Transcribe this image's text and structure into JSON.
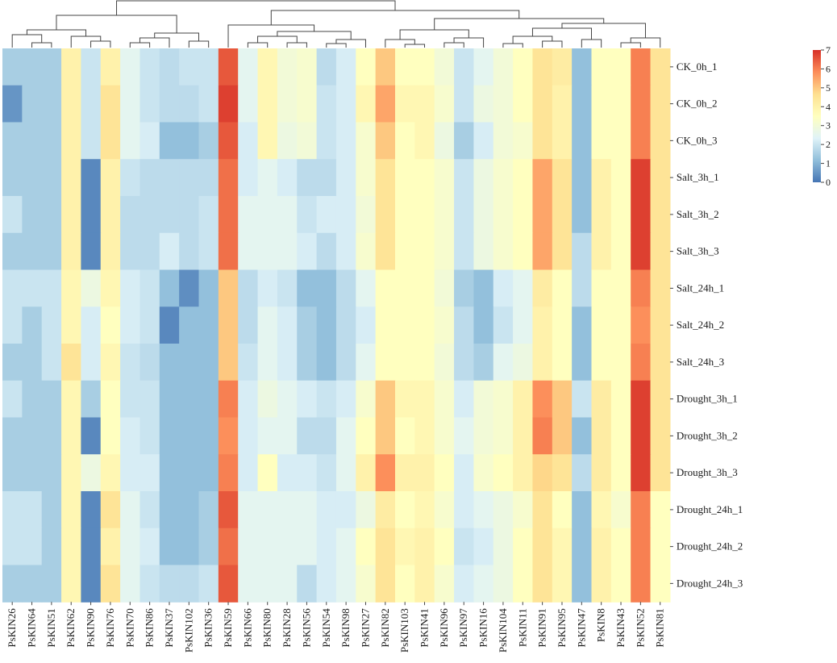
{
  "chart_data": {
    "type": "heatmap",
    "title": "",
    "columns": [
      "PsKIN26",
      "PsKIN64",
      "PsKIN51",
      "PsKIN62",
      "PsKIN90",
      "PsKIN76",
      "PsKIN70",
      "PsKIN86",
      "PsKIN37",
      "PsKIN102",
      "PsKIN36",
      "PsKIN59",
      "PsKIN66",
      "PsKIN80",
      "PsKIN28",
      "PsKIN56",
      "PsKIN54",
      "PsKIN98",
      "PsKIN27",
      "PsKIN82",
      "PsKIN103",
      "PsKIN41",
      "PsKIN96",
      "PsKIN97",
      "PsKIN16",
      "PsKIN104",
      "PsKIN11",
      "PsKIN91",
      "PsKIN95",
      "PsKIN47",
      "PsKIN8",
      "PsKIN43",
      "PsKIN52",
      "PsKIN81"
    ],
    "rows": [
      "CK_0h_1",
      "CK_0h_2",
      "CK_0h_3",
      "Salt_3h_1",
      "Salt_3h_2",
      "Salt_3h_3",
      "Salt_24h_1",
      "Salt_24h_2",
      "Salt_24h_3",
      "Drought_3h_1",
      "Drought_3h_2",
      "Drought_3h_3",
      "Drought_24h_1",
      "Drought_24h_2",
      "Drought_24h_3"
    ],
    "values": [
      [
        1.5,
        1.5,
        1.5,
        4.0,
        2.0,
        4.0,
        2.5,
        2.0,
        1.8,
        2.0,
        2.0,
        6.5,
        2.5,
        3.8,
        3.0,
        3.2,
        1.8,
        2.2,
        3.5,
        5.0,
        3.5,
        3.5,
        3.0,
        2.0,
        2.5,
        3.0,
        3.5,
        4.5,
        4.2,
        1.2,
        3.5,
        3.5,
        6.0,
        4.5
      ],
      [
        0.5,
        1.5,
        1.5,
        4.0,
        2.0,
        4.5,
        2.5,
        2.0,
        1.8,
        1.8,
        2.0,
        6.8,
        2.5,
        3.8,
        3.0,
        3.2,
        2.0,
        2.2,
        3.8,
        5.5,
        3.8,
        3.8,
        3.2,
        2.0,
        2.8,
        3.0,
        3.5,
        4.5,
        4.0,
        1.2,
        3.5,
        3.5,
        6.0,
        4.5
      ],
      [
        1.5,
        1.5,
        1.5,
        4.0,
        2.0,
        4.5,
        2.5,
        2.2,
        1.2,
        1.2,
        1.5,
        6.5,
        2.2,
        3.8,
        2.8,
        3.0,
        2.0,
        2.2,
        3.2,
        5.0,
        3.5,
        3.8,
        2.8,
        1.5,
        2.2,
        3.0,
        3.2,
        4.5,
        4.0,
        1.2,
        3.5,
        3.5,
        6.0,
        4.5
      ],
      [
        1.5,
        1.5,
        1.5,
        4.0,
        0.3,
        4.0,
        2.0,
        1.8,
        1.8,
        1.8,
        1.8,
        6.2,
        2.2,
        2.5,
        2.2,
        1.8,
        1.8,
        2.2,
        3.2,
        4.5,
        3.5,
        3.5,
        3.2,
        2.0,
        2.8,
        3.2,
        3.5,
        5.5,
        4.5,
        1.2,
        4.0,
        3.5,
        6.8,
        4.5
      ],
      [
        2.0,
        1.5,
        1.5,
        4.0,
        0.3,
        4.0,
        1.8,
        1.8,
        1.8,
        1.8,
        2.0,
        6.2,
        2.5,
        2.5,
        2.5,
        2.0,
        2.2,
        2.2,
        3.0,
        4.5,
        3.5,
        3.5,
        3.2,
        2.0,
        2.8,
        3.2,
        3.5,
        5.5,
        4.5,
        1.2,
        4.0,
        3.5,
        6.8,
        4.5
      ],
      [
        1.5,
        1.5,
        1.5,
        4.0,
        0.3,
        4.0,
        1.8,
        1.8,
        2.2,
        1.8,
        2.0,
        6.2,
        2.5,
        2.5,
        2.5,
        2.2,
        1.8,
        2.2,
        3.2,
        4.5,
        3.5,
        3.5,
        3.2,
        2.0,
        2.8,
        3.2,
        3.5,
        5.5,
        4.5,
        1.8,
        4.0,
        3.5,
        6.8,
        4.5
      ],
      [
        2.0,
        2.0,
        2.0,
        3.8,
        2.8,
        3.8,
        2.2,
        2.0,
        1.2,
        0.4,
        1.2,
        5.0,
        1.8,
        2.2,
        2.0,
        1.2,
        1.2,
        1.8,
        2.5,
        3.5,
        3.5,
        3.5,
        3.0,
        1.5,
        1.2,
        2.2,
        2.5,
        4.2,
        3.5,
        1.8,
        3.5,
        3.5,
        6.0,
        4.5
      ],
      [
        2.0,
        1.5,
        2.0,
        3.8,
        2.2,
        3.5,
        2.2,
        2.0,
        0.3,
        1.2,
        1.2,
        5.0,
        1.8,
        2.5,
        2.2,
        1.5,
        1.2,
        1.8,
        2.2,
        3.5,
        3.5,
        3.5,
        3.2,
        1.8,
        1.2,
        2.0,
        2.5,
        4.0,
        3.5,
        1.2,
        3.5,
        3.5,
        5.8,
        4.5
      ],
      [
        1.5,
        1.5,
        2.0,
        4.5,
        2.2,
        3.8,
        2.0,
        1.8,
        1.2,
        1.2,
        1.2,
        5.0,
        2.0,
        2.5,
        2.2,
        1.5,
        1.2,
        1.8,
        2.5,
        3.5,
        3.5,
        3.5,
        3.0,
        1.8,
        1.5,
        2.5,
        2.8,
        4.0,
        3.5,
        1.2,
        3.5,
        3.5,
        6.0,
        4.5
      ],
      [
        2.0,
        1.5,
        1.5,
        3.8,
        1.5,
        3.5,
        2.0,
        2.0,
        1.2,
        1.2,
        1.2,
        6.0,
        2.2,
        2.8,
        2.5,
        2.2,
        2.0,
        2.2,
        3.2,
        5.0,
        3.8,
        3.8,
        3.2,
        2.2,
        3.0,
        3.2,
        4.0,
        5.8,
        5.0,
        2.0,
        4.2,
        3.5,
        6.8,
        4.5
      ],
      [
        1.5,
        1.5,
        1.5,
        3.8,
        0.3,
        3.5,
        2.2,
        2.0,
        1.2,
        1.2,
        1.2,
        5.8,
        2.2,
        2.5,
        2.5,
        1.8,
        1.8,
        2.5,
        3.5,
        5.0,
        3.5,
        3.8,
        3.2,
        2.5,
        3.0,
        3.2,
        4.0,
        6.0,
        5.0,
        1.2,
        4.2,
        3.5,
        6.8,
        4.5
      ],
      [
        1.5,
        1.5,
        1.5,
        3.8,
        2.8,
        3.8,
        2.2,
        2.2,
        1.2,
        1.2,
        1.2,
        6.0,
        2.2,
        3.5,
        2.2,
        2.2,
        2.0,
        2.5,
        4.0,
        5.8,
        4.0,
        4.0,
        3.5,
        2.2,
        3.2,
        3.5,
        4.0,
        4.8,
        4.5,
        1.8,
        4.2,
        3.5,
        6.8,
        4.5
      ],
      [
        2.0,
        2.0,
        1.5,
        3.8,
        0.3,
        4.5,
        2.5,
        2.0,
        1.2,
        1.2,
        1.5,
        6.5,
        2.5,
        2.5,
        2.5,
        2.5,
        2.2,
        2.2,
        2.8,
        4.2,
        3.5,
        3.8,
        3.2,
        2.2,
        2.5,
        2.8,
        3.2,
        4.5,
        3.5,
        1.2,
        3.8,
        3.2,
        6.0,
        3.5
      ],
      [
        2.0,
        2.0,
        1.5,
        3.8,
        0.3,
        4.0,
        2.5,
        2.2,
        1.2,
        1.2,
        1.5,
        6.2,
        2.5,
        2.5,
        2.5,
        2.5,
        2.2,
        2.5,
        3.5,
        4.5,
        3.8,
        4.0,
        3.5,
        2.0,
        2.2,
        2.8,
        3.5,
        4.5,
        3.8,
        1.2,
        4.0,
        3.5,
        6.0,
        3.5
      ],
      [
        1.5,
        1.5,
        1.5,
        3.8,
        0.3,
        4.5,
        2.5,
        2.0,
        1.8,
        1.8,
        2.0,
        6.5,
        2.5,
        2.5,
        2.5,
        1.8,
        2.2,
        2.5,
        3.2,
        4.5,
        3.5,
        4.0,
        3.2,
        2.2,
        2.5,
        2.8,
        3.5,
        4.5,
        3.8,
        1.2,
        4.0,
        3.5,
        6.0,
        3.5
      ]
    ],
    "colorbar": {
      "range": [
        0,
        7
      ],
      "ticks": [
        "0",
        "1",
        "2",
        "3",
        "4",
        "5",
        "6",
        "7"
      ],
      "colors": [
        "#4575b4",
        "#91bfdb",
        "#e0f3f8",
        "#ffffbf",
        "#fee090",
        "#fc8d59",
        "#d73027"
      ]
    },
    "legend_position": "top-right",
    "dendrogram": "columns-top"
  }
}
